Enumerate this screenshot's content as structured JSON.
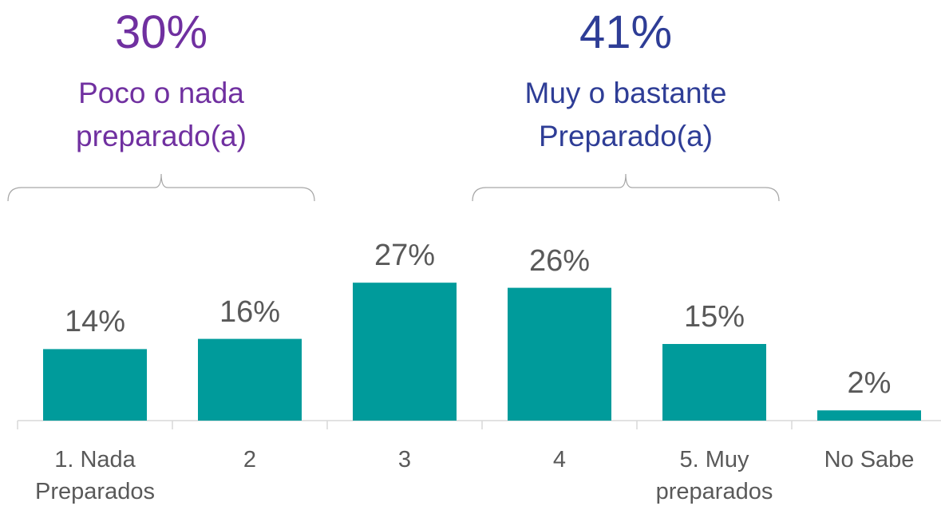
{
  "chart_data": {
    "type": "bar",
    "categories": [
      "1. Nada Preparados",
      "2",
      "3",
      "4",
      "5. Muy preparados",
      "No Sabe"
    ],
    "values": [
      14,
      16,
      27,
      26,
      15,
      2
    ],
    "value_labels": [
      "14%",
      "16%",
      "27%",
      "26%",
      "15%",
      "2%"
    ],
    "color": "#009b9b",
    "annotations": [
      {
        "value": 30,
        "label": "30%",
        "text": "Poco o nada preparado(a)",
        "color": "#7030a0"
      },
      {
        "value": 41,
        "label": "41%",
        "text": "Muy o bastante Preparado(a)",
        "color": "#2e3d96"
      }
    ]
  }
}
